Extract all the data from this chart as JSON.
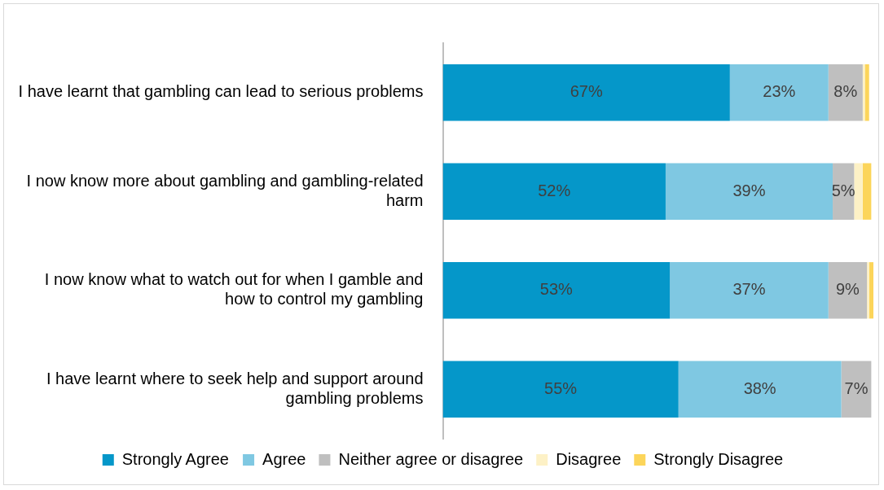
{
  "chart_data": {
    "type": "bar",
    "orientation": "horizontal",
    "stacked": true,
    "legend": "bottom",
    "categories": [
      "I have learnt that gambling can lead to serious problems",
      "I now know more about gambling and gambling-related harm",
      "I now know what to watch out for when I gamble and how to control my gambling",
      "I have learnt where to seek help and support around gambling problems"
    ],
    "series": [
      {
        "name": "Strongly Agree",
        "color": "#0597c9",
        "values": [
          67,
          52,
          53,
          55
        ],
        "value_labels": [
          "67%",
          "52%",
          "53%",
          "55%"
        ]
      },
      {
        "name": "Agree",
        "color": "#7fc8e2",
        "values": [
          23,
          39,
          37,
          38
        ],
        "value_labels": [
          "23%",
          "39%",
          "37%",
          "38%"
        ]
      },
      {
        "name": "Neither agree or disagree",
        "color": "#bfbfbf",
        "values": [
          8,
          5,
          9,
          7
        ],
        "value_labels": [
          "8%",
          "5%",
          "9%",
          "7%"
        ]
      },
      {
        "name": "Disagree",
        "color": "#fdf1c6",
        "values": [
          0.5,
          2,
          0.5,
          0
        ],
        "value_labels": [
          null,
          null,
          null,
          null
        ]
      },
      {
        "name": "Strongly Disagree",
        "color": "#fcd55a",
        "values": [
          1,
          2,
          1,
          0
        ],
        "value_labels": [
          null,
          null,
          null,
          null
        ]
      }
    ]
  }
}
